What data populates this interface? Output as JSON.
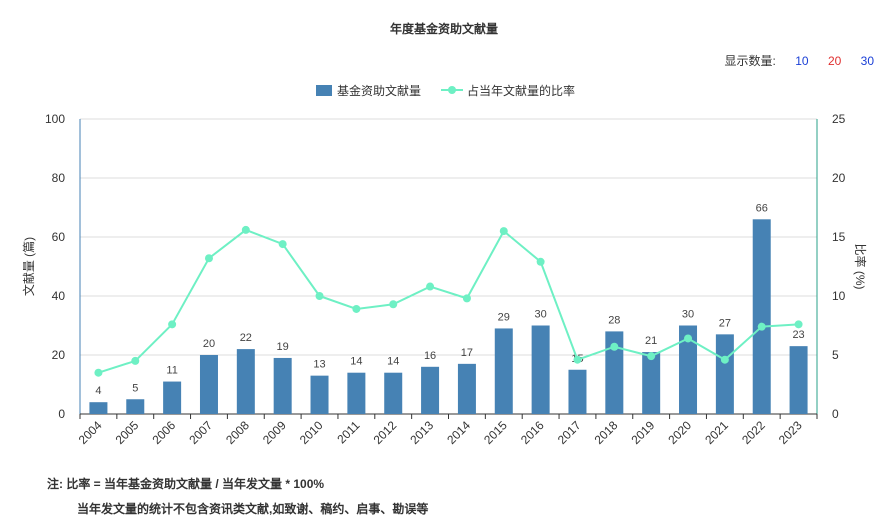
{
  "title": "年度基金资助文献量",
  "display_count": {
    "label": "显示数量:",
    "options": [
      {
        "label": "10",
        "color": "#1a3fd6"
      },
      {
        "label": "20",
        "color": "#e03030"
      },
      {
        "label": "30",
        "color": "#1a3fd6"
      }
    ]
  },
  "notes": {
    "line1": "注:   比率 = 当年基金资助文献量 / 当年发文量 * 100%",
    "line2": "当年发文量的统计不包含资讯类文献,如致谢、稿约、启事、勘误等"
  },
  "colors": {
    "bar": "#4682b4",
    "line": "#6ef0c4",
    "axis_left": "#4682b4",
    "axis_right": "#2aa08a"
  },
  "chart_data": {
    "type": "bar",
    "categories": [
      "2004",
      "2005",
      "2006",
      "2007",
      "2008",
      "2009",
      "2010",
      "2011",
      "2012",
      "2013",
      "2014",
      "2015",
      "2016",
      "2017",
      "2018",
      "2019",
      "2020",
      "2021",
      "2022",
      "2023"
    ],
    "series": [
      {
        "name": "基金资助文献量",
        "type": "bar",
        "axis": "left",
        "values": [
          4,
          5,
          11,
          20,
          22,
          19,
          13,
          14,
          14,
          16,
          17,
          29,
          30,
          15,
          28,
          21,
          30,
          27,
          66,
          23
        ]
      },
      {
        "name": "占当年文献量的比率",
        "type": "line",
        "axis": "right",
        "values": [
          3.5,
          4.5,
          7.6,
          13.2,
          15.6,
          14.4,
          10.0,
          8.9,
          9.3,
          10.8,
          9.8,
          15.5,
          12.9,
          4.6,
          5.7,
          4.9,
          6.4,
          4.6,
          7.4,
          7.6
        ]
      }
    ],
    "ylabel": "文献量 (篇)",
    "ylabel_right": "比率 (%)",
    "ylim": [
      0,
      100
    ],
    "ylim_right": [
      0,
      25
    ],
    "yticks": [
      "0",
      "20",
      "40",
      "60",
      "80",
      "100"
    ],
    "yticks_right": [
      "0",
      "5",
      "10",
      "15",
      "20",
      "25"
    ],
    "grid": true,
    "legend_position": "top-center"
  }
}
